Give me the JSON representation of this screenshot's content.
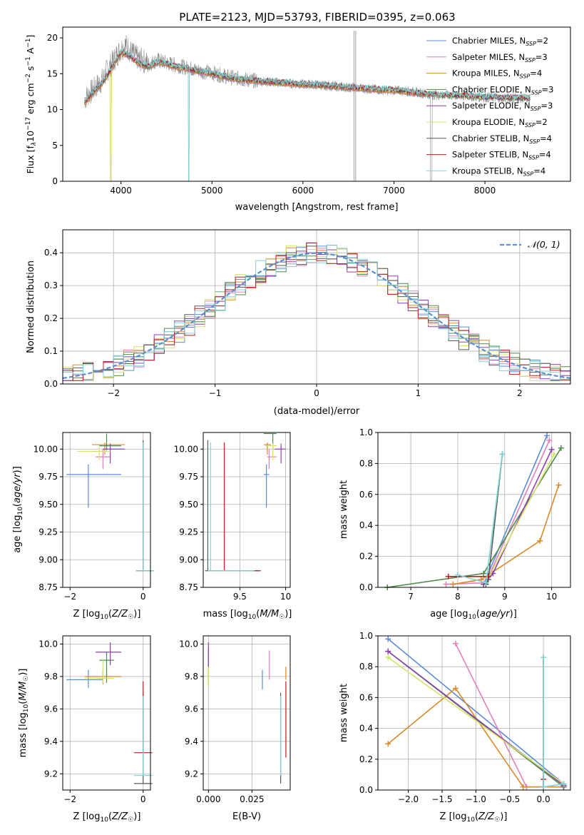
{
  "figure": {
    "title": "PLATE=2123, MJD=53793, FIBERID=0395, z=0.063"
  },
  "colors": {
    "Chabrier MILES": "#5b8bd9",
    "Salpeter MILES": "#e07fbc",
    "Kroupa MILES": "#d98a2a",
    "Chabrier ELODIE": "#4e8a4e",
    "Salpeter ELODIE": "#8e3fb0",
    "Kroupa ELODIE": "#d4e36a",
    "Chabrier STELIB": "#595959",
    "Salpeter STELIB": "#b22222",
    "Kroupa STELIB": "#7fd3d6",
    "data": "#8a8a8a",
    "orange_overlay": "#e07a2a",
    "gauss": "#5b8fd4"
  },
  "chart_data": [
    {
      "id": "spectrum",
      "type": "line",
      "title": "PLATE=2123, MJD=53793, FIBERID=0395, z=0.063",
      "xlabel": "wavelength [Angstrom, rest frame]",
      "ylabel": "Flux [f_λ 10^-17 erg cm^-2 s^-1 A^-1]",
      "xlim": [
        3360,
        8940
      ],
      "ylim": [
        0,
        21.5
      ],
      "xticks": [
        4000,
        5000,
        6000,
        7000,
        8000
      ],
      "yticks": [
        0,
        5,
        10,
        15,
        20
      ],
      "legend_position": "top-right",
      "legend": [
        {
          "label": "Chabrier MILES",
          "n": "2",
          "series": "Chabrier MILES"
        },
        {
          "label": "Salpeter MILES",
          "n": "3",
          "series": "Salpeter MILES"
        },
        {
          "label": "Kroupa MILES",
          "n": "4",
          "series": "Kroupa MILES"
        },
        {
          "label": "Chabrier ELODIE",
          "n": "3",
          "series": "Chabrier ELODIE"
        },
        {
          "label": "Salpeter ELODIE",
          "n": "3",
          "series": "Salpeter ELODIE"
        },
        {
          "label": "Kroupa ELODIE",
          "n": "2",
          "series": "Kroupa ELODIE"
        },
        {
          "label": "Chabrier STELIB",
          "n": "4",
          "series": "Chabrier STELIB"
        },
        {
          "label": "Salpeter STELIB",
          "n": "4",
          "series": "Salpeter STELIB"
        },
        {
          "label": "Kroupa STELIB",
          "n": "4",
          "series": "Kroupa STELIB"
        }
      ],
      "data_series": {
        "x": [
          3600,
          3650,
          3700,
          3750,
          3800,
          3850,
          3900,
          3950,
          4000,
          4050,
          4100,
          4150,
          4200,
          4250,
          4300,
          4350,
          4400,
          4450,
          4500,
          4600,
          4700,
          4800,
          4900,
          5000,
          5100,
          5200,
          5300,
          5400,
          5500,
          5600,
          5700,
          5800,
          5900,
          6000,
          6100,
          6200,
          6300,
          6400,
          6500,
          6600,
          6700,
          6800,
          6900,
          7000,
          7100,
          7200,
          7300,
          7400,
          7500,
          7600,
          7700,
          7800,
          7900,
          8000,
          8100,
          8200,
          8300,
          8400,
          8500
        ],
        "y": [
          11.5,
          12.2,
          12.8,
          13.5,
          14.2,
          15.5,
          16.5,
          17.5,
          18.5,
          19.0,
          18.2,
          17.5,
          17.0,
          16.8,
          16.3,
          16.6,
          16.9,
          16.7,
          16.5,
          16.2,
          15.9,
          15.6,
          15.3,
          15.1,
          14.8,
          14.5,
          14.3,
          14.1,
          14.0,
          13.9,
          13.8,
          13.7,
          13.6,
          13.5,
          13.5,
          13.4,
          13.3,
          13.2,
          13.1,
          13.0,
          12.9,
          12.8,
          12.7,
          12.7,
          12.6,
          12.5,
          12.3,
          12.1,
          12.0,
          12.0,
          11.9,
          11.9,
          11.8,
          11.7,
          11.7,
          11.6,
          11.6,
          11.6,
          11.5
        ]
      },
      "model_series": {
        "x": [
          3600,
          3700,
          3800,
          3900,
          4000,
          4100,
          4200,
          4300,
          4400,
          4500,
          4600,
          4800,
          5000,
          5200,
          5400,
          5600,
          5800,
          6000,
          6200,
          6400,
          6600,
          6800,
          7000,
          7200,
          7400
        ],
        "y": [
          11.0,
          12.5,
          13.8,
          15.8,
          18.0,
          17.5,
          16.4,
          16.0,
          16.6,
          16.4,
          16.0,
          15.5,
          15.0,
          14.4,
          14.1,
          13.9,
          13.7,
          13.5,
          13.4,
          13.2,
          13.0,
          12.8,
          12.7,
          12.4,
          12.1
        ]
      }
    },
    {
      "id": "residuals",
      "type": "line",
      "xlabel": "(data-model)/error",
      "ylabel": "Normed distribution",
      "xlim": [
        -2.5,
        2.5
      ],
      "ylim": [
        0,
        0.47
      ],
      "xticks": [
        -2,
        -1,
        0,
        1,
        2
      ],
      "yticks": [
        0.0,
        0.1,
        0.2,
        0.3,
        0.4
      ],
      "legend_position": "top-right",
      "legend": [
        {
          "label": "𝒩(0, 1)"
        }
      ],
      "grid": true
    },
    {
      "id": "age_vs_Z",
      "type": "scatter",
      "xlabel": "Z [log10(Z/Z☉)]",
      "ylabel": "age [log10(age/yr)]",
      "xlim": [
        -2.2,
        0.2
      ],
      "ylim": [
        8.75,
        10.15
      ],
      "xticks": [
        -2,
        0
      ],
      "yticks": [
        8.75,
        9.0,
        9.25,
        9.5,
        9.75,
        10.0
      ],
      "grid": true
    },
    {
      "id": "age_vs_mass",
      "type": "scatter",
      "xlabel": "mass [log10(M/M☉)]",
      "ylabel": "",
      "xlim": [
        9.1,
        10.05
      ],
      "ylim": [
        8.75,
        10.15
      ],
      "xticks": [
        9.5,
        10.0
      ],
      "yticks": [
        8.75,
        9.0,
        9.25,
        9.5,
        9.75,
        10.0
      ],
      "grid": true
    },
    {
      "id": "weight_vs_age",
      "type": "line",
      "xlabel": "age [log10(age/yr)]",
      "ylabel": "mass weight",
      "xlim": [
        6.3,
        10.4
      ],
      "ylim": [
        0.0,
        1.0
      ],
      "xticks": [
        7,
        8,
        9,
        10
      ],
      "yticks": [
        0.0,
        0.2,
        0.4,
        0.6,
        0.8,
        1.0
      ],
      "grid": true,
      "series": [
        {
          "series": "Chabrier MILES",
          "x": [
            8.55,
            9.9
          ],
          "y": [
            0.02,
            0.98
          ]
        },
        {
          "series": "Salpeter MILES",
          "x": [
            7.75,
            8.6,
            9.95
          ],
          "y": [
            0.02,
            0.03,
            0.95
          ]
        },
        {
          "series": "Kroupa MILES",
          "x": [
            7.9,
            8.5,
            9.75,
            10.15
          ],
          "y": [
            0.02,
            0.05,
            0.3,
            0.66
          ]
        },
        {
          "series": "Chabrier ELODIE",
          "x": [
            6.5,
            8.55,
            10.2
          ],
          "y": [
            0.0,
            0.09,
            0.9
          ]
        },
        {
          "series": "Salpeter ELODIE",
          "x": [
            8.55,
            8.75,
            10.0
          ],
          "y": [
            0.02,
            0.09,
            0.89
          ]
        },
        {
          "series": "Kroupa ELODIE",
          "x": [
            8.6,
            10.05
          ],
          "y": [
            0.03,
            0.86
          ]
        },
        {
          "series": "Chabrier STELIB",
          "x": [
            8.6,
            8.65,
            8.95
          ],
          "y": [
            0.02,
            0.05,
            0.86
          ]
        },
        {
          "series": "Salpeter STELIB",
          "x": [
            7.8,
            8.65
          ],
          "y": [
            0.07,
            0.07
          ]
        },
        {
          "series": "Kroupa STELIB",
          "x": [
            8.0,
            8.6,
            8.95
          ],
          "y": [
            0.08,
            0.03,
            0.86
          ]
        }
      ]
    },
    {
      "id": "mass_vs_Z",
      "type": "scatter",
      "xlabel": "Z [log10(Z/Z☉)]",
      "ylabel": "mass [log10(M/M☉)]",
      "xlim": [
        -2.2,
        0.2
      ],
      "ylim": [
        9.1,
        10.05
      ],
      "xticks": [
        -2,
        0
      ],
      "yticks": [
        9.2,
        9.4,
        9.6,
        9.8,
        10.0
      ],
      "grid": true
    },
    {
      "id": "mass_vs_EBV",
      "type": "scatter",
      "xlabel": "E(B-V)",
      "ylabel": "",
      "xlim": [
        -0.003,
        0.047
      ],
      "ylim": [
        9.1,
        10.05
      ],
      "xticks": [
        0.0,
        0.025
      ],
      "xticklabels": [
        "0.000",
        "0.025"
      ],
      "yticks": [
        9.2,
        9.4,
        9.6,
        9.8,
        10.0
      ],
      "grid": true
    },
    {
      "id": "weight_vs_Z",
      "type": "line",
      "xlabel": "Z [log10(Z/Z☉)]",
      "ylabel": "mass weight",
      "xlim": [
        -2.45,
        0.4
      ],
      "ylim": [
        0.0,
        1.0
      ],
      "xticks": [
        -2.0,
        -1.5,
        -1.0,
        -0.5,
        0.0
      ],
      "yticks": [
        0.0,
        0.2,
        0.4,
        0.6,
        0.8,
        1.0
      ],
      "grid": true,
      "series": [
        {
          "series": "Chabrier MILES",
          "x": [
            -2.3,
            0.3
          ],
          "y": [
            0.98,
            0.04
          ]
        },
        {
          "series": "Salpeter MILES",
          "x": [
            -1.3,
            -0.25,
            0.3
          ],
          "y": [
            0.95,
            0.02,
            0.02
          ]
        },
        {
          "series": "Kroupa MILES",
          "x": [
            -2.3,
            -1.3,
            -0.3,
            0.3
          ],
          "y": [
            0.3,
            0.66,
            0.02,
            0.02
          ]
        },
        {
          "series": "Chabrier ELODIE",
          "x": [
            -2.3,
            0.3
          ],
          "y": [
            0.9,
            0.02
          ]
        },
        {
          "series": "Salpeter ELODIE",
          "x": [
            -2.3,
            0.3
          ],
          "y": [
            0.9,
            0.03
          ]
        },
        {
          "series": "Kroupa ELODIE",
          "x": [
            -2.3,
            0.3
          ],
          "y": [
            0.86,
            0.04
          ]
        },
        {
          "series": "Chabrier STELIB",
          "x": [
            0.0,
            0.0
          ],
          "y": [
            0.02,
            0.86
          ]
        },
        {
          "series": "Salpeter STELIB",
          "x": [
            0.0,
            0.0
          ],
          "y": [
            0.02,
            0.07
          ]
        },
        {
          "series": "Kroupa STELIB",
          "x": [
            0.0,
            0.0,
            0.3
          ],
          "y": [
            0.86,
            0.02,
            0.04
          ]
        }
      ]
    }
  ]
}
